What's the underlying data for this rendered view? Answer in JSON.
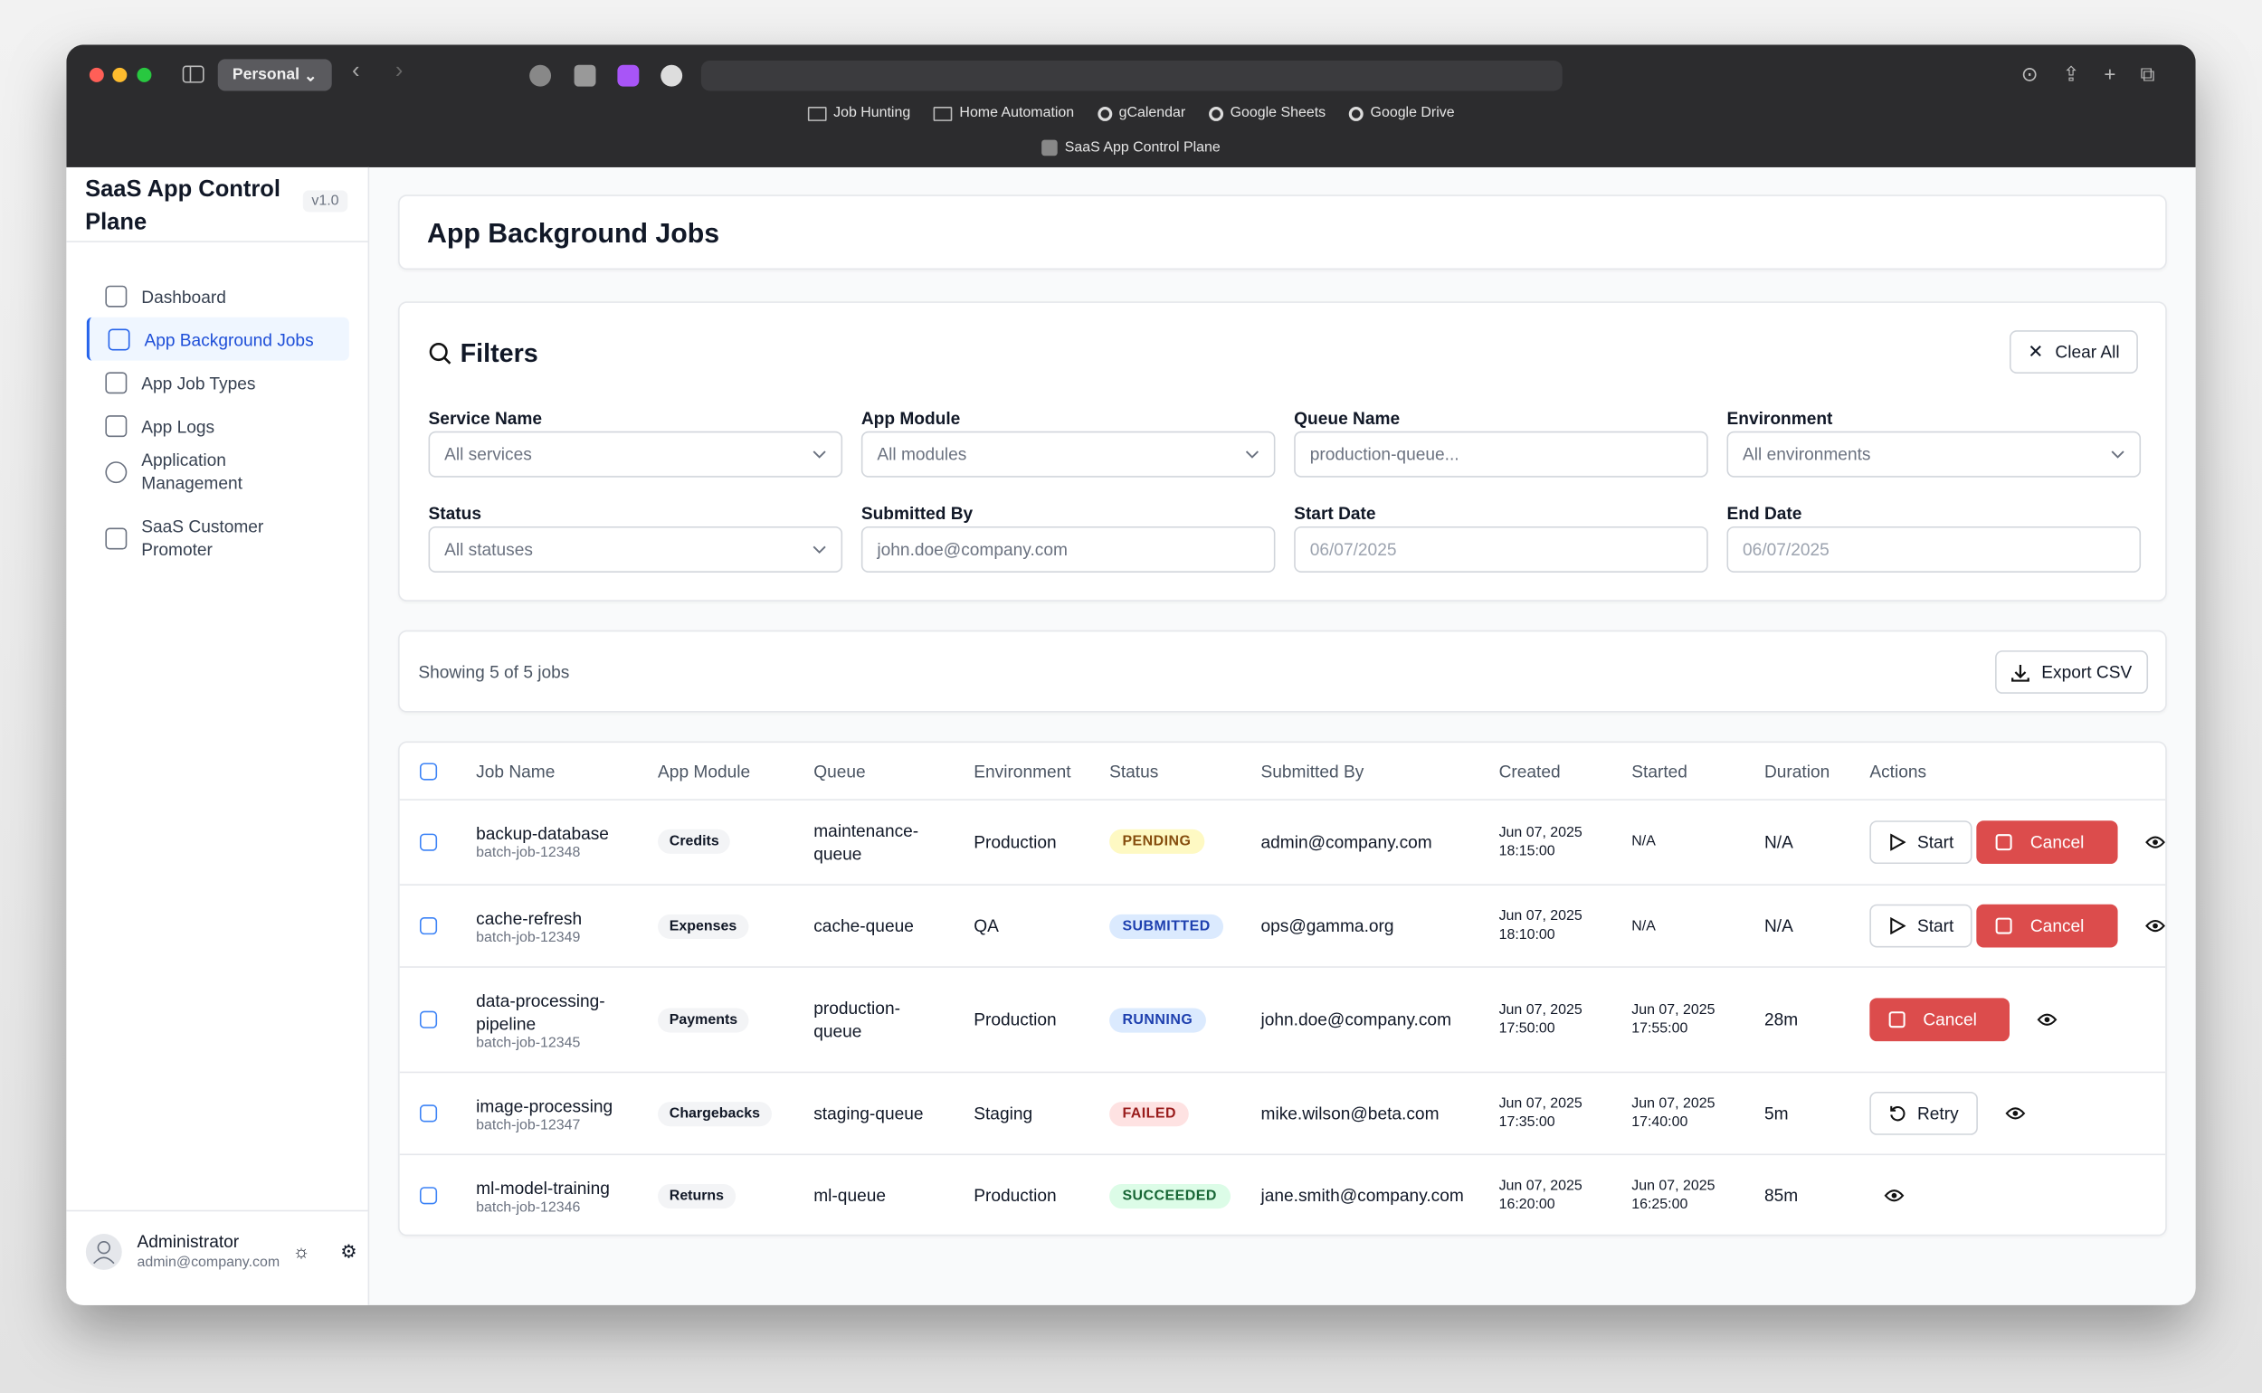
{
  "browser": {
    "profile": "Personal",
    "bookmarks": [
      "Job Hunting",
      "Home Automation",
      "gCalendar",
      "Google Sheets",
      "Google Drive"
    ],
    "tab": "SaaS App Control Plane"
  },
  "sidebar": {
    "title": "SaaS App Control Plane",
    "version": "v1.0",
    "active": 1,
    "nav": [
      "Dashboard",
      "App Background Jobs",
      "App Job Types",
      "App Logs",
      "Application Management",
      "SaaS Customer Promoter"
    ],
    "user": {
      "name": "Administrator",
      "email": "admin@company.com"
    }
  },
  "header": {
    "title": "App Background Jobs"
  },
  "filters": {
    "title": "Filters",
    "clear": "Clear All",
    "fields": [
      {
        "label": "Service Name",
        "placeholder": "All services",
        "kind": "select"
      },
      {
        "label": "App Module",
        "placeholder": "All modules",
        "kind": "select"
      },
      {
        "label": "Queue Name",
        "placeholder": "production-queue...",
        "kind": "text"
      },
      {
        "label": "Environment",
        "placeholder": "All environments",
        "kind": "select"
      },
      {
        "label": "Status",
        "placeholder": "All statuses",
        "kind": "select"
      },
      {
        "label": "Submitted By",
        "placeholder": "john.doe@company.com",
        "kind": "text"
      },
      {
        "label": "Start Date",
        "placeholder": "06/07/2025",
        "kind": "date"
      },
      {
        "label": "End Date",
        "placeholder": "06/07/2025",
        "kind": "date"
      }
    ]
  },
  "summary": {
    "text": "Showing 5 of 5 jobs",
    "export": "Export CSV"
  },
  "table": {
    "columns": [
      "Job Name",
      "App Module",
      "Queue",
      "Environment",
      "Status",
      "Submitted By",
      "Created",
      "Started",
      "Duration",
      "Actions"
    ],
    "rows": [
      {
        "name": "backup-database",
        "id": "batch-job-12348",
        "module": "Credits",
        "queue": "maintenance-queue",
        "environment": "Production",
        "status": "PENDING",
        "status_color": "#854d0e",
        "status_bg": "#fef9c3",
        "submitted_by": "admin@company.com",
        "created": [
          "Jun 07, 2025",
          "18:15:00"
        ],
        "started": [
          "N/A"
        ],
        "duration": "N/A",
        "actions": [
          {
            "label": "Start",
            "style": "outline"
          },
          {
            "label": "Cancel",
            "style": "danger"
          }
        ]
      },
      {
        "name": "cache-refresh",
        "id": "batch-job-12349",
        "module": "Expenses",
        "queue": "cache-queue",
        "environment": "QA",
        "status": "SUBMITTED",
        "status_color": "#1e40af",
        "status_bg": "#dbeafe",
        "submitted_by": "ops@gamma.org",
        "created": [
          "Jun 07, 2025",
          "18:10:00"
        ],
        "started": [
          "N/A"
        ],
        "duration": "N/A",
        "actions": [
          {
            "label": "Start",
            "style": "outline"
          },
          {
            "label": "Cancel",
            "style": "danger"
          }
        ]
      },
      {
        "name": "data-processing-pipeline",
        "id": "batch-job-12345",
        "module": "Payments",
        "queue": "production-queue",
        "environment": "Production",
        "status": "RUNNING",
        "status_color": "#1e40af",
        "status_bg": "#dbeafe",
        "submitted_by": "john.doe@company.com",
        "created": [
          "Jun 07, 2025",
          "17:50:00"
        ],
        "started": [
          "Jun 07, 2025",
          "17:55:00"
        ],
        "duration": "28m",
        "actions": [
          {
            "label": "Cancel",
            "style": "danger"
          }
        ]
      },
      {
        "name": "image-processing",
        "id": "batch-job-12347",
        "module": "Chargebacks",
        "queue": "staging-queue",
        "environment": "Staging",
        "status": "FAILED",
        "status_color": "#991b1b",
        "status_bg": "#fee2e2",
        "submitted_by": "mike.wilson@beta.com",
        "created": [
          "Jun 07, 2025",
          "17:35:00"
        ],
        "started": [
          "Jun 07, 2025",
          "17:40:00"
        ],
        "duration": "5m",
        "actions": [
          {
            "label": "Retry",
            "style": "outline"
          }
        ]
      },
      {
        "name": "ml-model-training",
        "id": "batch-job-12346",
        "module": "Returns",
        "queue": "ml-queue",
        "environment": "Production",
        "status": "SUCCEEDED",
        "status_color": "#166534",
        "status_bg": "#dcfce7",
        "submitted_by": "jane.smith@company.com",
        "created": [
          "Jun 07, 2025",
          "16:20:00"
        ],
        "started": [
          "Jun 07, 2025",
          "16:25:00"
        ],
        "duration": "85m",
        "actions": []
      }
    ]
  }
}
